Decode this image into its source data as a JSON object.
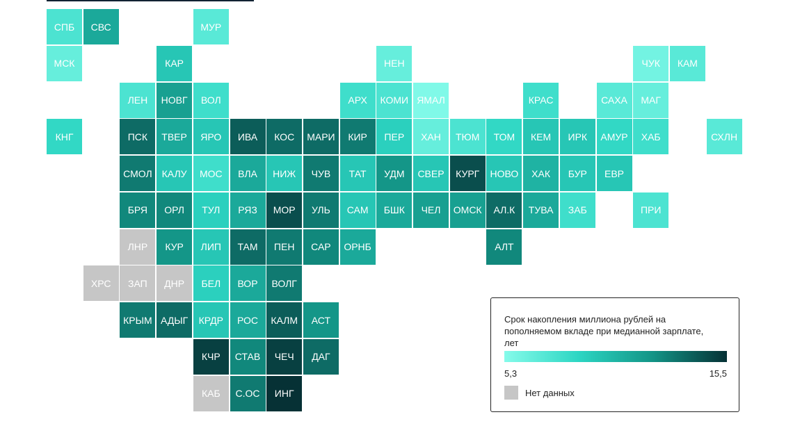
{
  "chart_data": {
    "type": "tilemap",
    "rows": [
      [
        {
          "label": "СПБ",
          "value": 7.5
        },
        {
          "label": "СВС",
          "value": 11
        },
        null,
        null,
        {
          "label": "МУР",
          "value": 7
        }
      ],
      [
        {
          "label": "МСК",
          "value": 6.5
        },
        null,
        null,
        {
          "label": "КАР",
          "value": 9.5
        },
        null,
        null,
        null,
        null,
        null,
        {
          "label": "НЕН",
          "value": 6.5
        },
        null,
        null,
        null,
        null,
        null,
        null,
        {
          "label": "ЧУК",
          "value": 6
        },
        {
          "label": "КАМ",
          "value": 7
        }
      ],
      [
        null,
        null,
        {
          "label": "ЛЕН",
          "value": 7.5
        },
        {
          "label": "НОВГ",
          "value": 11.5
        },
        {
          "label": "ВОЛ",
          "value": 8
        },
        null,
        null,
        null,
        {
          "label": "АРХ",
          "value": 8
        },
        {
          "label": "КОМИ",
          "value": 7.5
        },
        {
          "label": "ЯМАЛ",
          "value": 5.5
        },
        null,
        null,
        {
          "label": "КРАС",
          "value": 8
        },
        null,
        {
          "label": "САХА",
          "value": 7
        },
        {
          "label": "МАГ",
          "value": 6.5
        }
      ],
      [
        {
          "label": "КНГ",
          "value": 8.5
        },
        null,
        {
          "label": "ПСК",
          "value": 13.5
        },
        {
          "label": "ТВЕР",
          "value": 11
        },
        {
          "label": "ЯРО",
          "value": 9.5
        },
        {
          "label": "ИВА",
          "value": 14
        },
        {
          "label": "КОС",
          "value": 13.5
        },
        {
          "label": "МАРИ",
          "value": 13.5
        },
        {
          "label": "КИР",
          "value": 13
        },
        {
          "label": "ПЕР",
          "value": 9
        },
        {
          "label": "ХАН",
          "value": 6.5
        },
        {
          "label": "ТЮМ",
          "value": 7.5
        },
        {
          "label": "ТОМ",
          "value": 8.5
        },
        {
          "label": "КЕМ",
          "value": 9.5
        },
        {
          "label": "ИРК",
          "value": 9.5
        },
        {
          "label": "АМУР",
          "value": 8.5
        },
        {
          "label": "ХАБ",
          "value": 8
        },
        null,
        {
          "label": "СХЛН",
          "value": 7
        }
      ],
      [
        null,
        null,
        {
          "label": "СМОЛ",
          "value": 13
        },
        {
          "label": "КАЛУ",
          "value": 9.5
        },
        {
          "label": "МОС",
          "value": 8
        },
        {
          "label": "ВЛА",
          "value": 11
        },
        {
          "label": "НИЖ",
          "value": 9.5
        },
        {
          "label": "ЧУВ",
          "value": 13
        },
        {
          "label": "ТАТ",
          "value": 9.5
        },
        {
          "label": "УДМ",
          "value": 12
        },
        {
          "label": "СВЕР",
          "value": 9.5
        },
        {
          "label": "КУРГ",
          "value": 14.5
        },
        {
          "label": "НОВО",
          "value": 9.5
        },
        {
          "label": "ХАК",
          "value": 10.5
        },
        {
          "label": "БУР",
          "value": 9.5
        },
        {
          "label": "ЕВР",
          "value": 9.5
        }
      ],
      [
        null,
        null,
        {
          "label": "БРЯ",
          "value": 12.5
        },
        {
          "label": "ОРЛ",
          "value": 12.5
        },
        {
          "label": "ТУЛ",
          "value": 9
        },
        {
          "label": "РЯЗ",
          "value": 11
        },
        {
          "label": "МОР",
          "value": 14.5
        },
        {
          "label": "УЛЬ",
          "value": 13
        },
        {
          "label": "САМ",
          "value": 9.5
        },
        {
          "label": "БШК",
          "value": 11
        },
        {
          "label": "ЧЕЛ",
          "value": 11.5
        },
        {
          "label": "ОМСК",
          "value": 11.5
        },
        {
          "label": "АЛ.К",
          "value": 13.5
        },
        {
          "label": "ТУВА",
          "value": 11
        },
        {
          "label": "ЗАБ",
          "value": 8
        },
        null,
        {
          "label": "ПРИ",
          "value": 7.5
        }
      ],
      [
        null,
        null,
        {
          "label": "ЛНР",
          "value": null
        },
        {
          "label": "КУР",
          "value": 12
        },
        {
          "label": "ЛИП",
          "value": 9.5
        },
        {
          "label": "ТАМ",
          "value": 13.5
        },
        {
          "label": "ПЕН",
          "value": 13
        },
        {
          "label": "САР",
          "value": 12.5
        },
        {
          "label": "ОРНБ",
          "value": 11
        },
        null,
        null,
        null,
        {
          "label": "АЛТ",
          "value": 12.5
        }
      ],
      [
        null,
        {
          "label": "ХРС",
          "value": null
        },
        {
          "label": "ЗАП",
          "value": null
        },
        {
          "label": "ДНР",
          "value": null
        },
        {
          "label": "БЕЛ",
          "value": 9
        },
        {
          "label": "ВОР",
          "value": 11
        },
        {
          "label": "ВОЛГ",
          "value": 13
        }
      ],
      [
        null,
        null,
        {
          "label": "КРЫМ",
          "value": 13
        },
        {
          "label": "АДЫГ",
          "value": 13.5
        },
        {
          "label": "КРДР",
          "value": 9.5
        },
        {
          "label": "РОС",
          "value": 11
        },
        {
          "label": "КАЛМ",
          "value": 14
        },
        {
          "label": "АСТ",
          "value": 12
        }
      ],
      [
        null,
        null,
        null,
        null,
        {
          "label": "КЧР",
          "value": 15
        },
        {
          "label": "СТАВ",
          "value": 12.5
        },
        {
          "label": "ЧЕЧ",
          "value": 15
        },
        {
          "label": "ДАГ",
          "value": 13.5
        }
      ],
      [
        null,
        null,
        null,
        null,
        {
          "label": "КАБ",
          "value": null
        },
        {
          "label": "С.ОС",
          "value": 13
        },
        {
          "label": "ИНГ",
          "value": 15.5
        }
      ]
    ],
    "legend": {
      "title": "Срок накопления миллиона рублей на пополняемом вкладе при медианной зарплате, лет",
      "ticks": [
        {
          "value": 5.3,
          "label": "5,3"
        },
        {
          "value": 15.5,
          "label": "15,5"
        }
      ],
      "colors": [
        "#85fbea",
        "#2dd6c3",
        "#139486",
        "#063135"
      ],
      "no_data_label": "Нет данных",
      "no_data_color": "#c6c6c6"
    }
  }
}
